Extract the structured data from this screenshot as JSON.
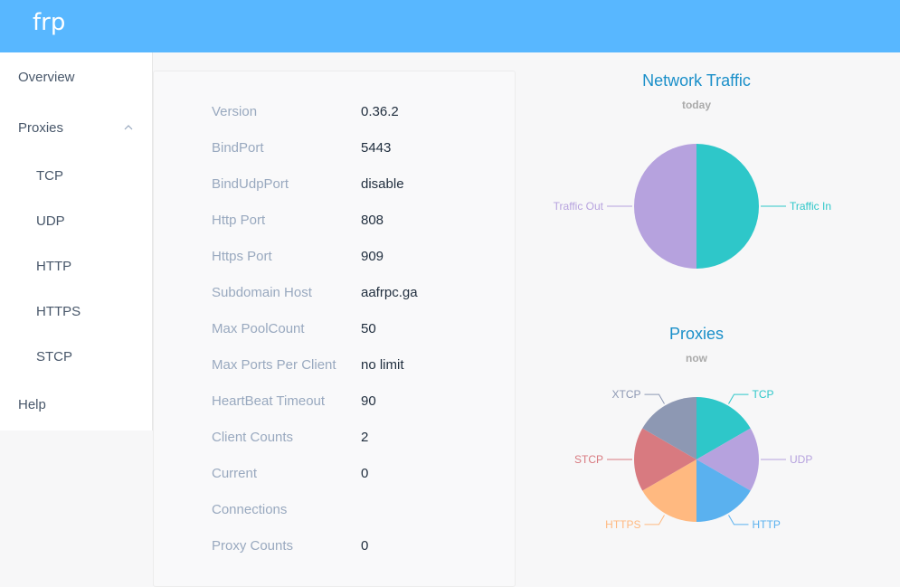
{
  "app": {
    "title": "frp"
  },
  "sidebar": {
    "overview": "Overview",
    "proxies": "Proxies",
    "proxy_types": [
      "TCP",
      "UDP",
      "HTTP",
      "HTTPS",
      "STCP"
    ],
    "help": "Help"
  },
  "server_info": [
    {
      "label": "Version",
      "value": "0.36.2"
    },
    {
      "label": "BindPort",
      "value": "5443"
    },
    {
      "label": "BindUdpPort",
      "value": "disable"
    },
    {
      "label": "Http Port",
      "value": "808"
    },
    {
      "label": "Https Port",
      "value": "909"
    },
    {
      "label": "Subdomain Host",
      "value": "aafrpc.ga"
    },
    {
      "label": "Max PoolCount",
      "value": "50"
    },
    {
      "label": "Max Ports Per Client",
      "value": "no limit"
    },
    {
      "label": "HeartBeat Timeout",
      "value": "90"
    },
    {
      "label": "Client Counts",
      "value": "2"
    },
    {
      "label": "Current",
      "value": "0"
    },
    {
      "label": "Connections",
      "value": ""
    },
    {
      "label": "Proxy Counts",
      "value": "0"
    }
  ],
  "chart_data": [
    {
      "type": "pie",
      "title": "Network Traffic",
      "subtitle": "today",
      "categories": [
        "Traffic In",
        "Traffic Out"
      ],
      "values": [
        1,
        1
      ],
      "colors": [
        "#2ec7c9",
        "#b6a2de"
      ]
    },
    {
      "type": "pie",
      "title": "Proxies",
      "subtitle": "now",
      "categories": [
        "TCP",
        "UDP",
        "HTTP",
        "HTTPS",
        "STCP",
        "XTCP"
      ],
      "values": [
        1,
        1,
        1,
        1,
        1,
        1
      ],
      "colors": [
        "#2ec7c9",
        "#b6a2de",
        "#5ab1ef",
        "#ffb980",
        "#d87a80",
        "#8d98b3"
      ]
    }
  ]
}
